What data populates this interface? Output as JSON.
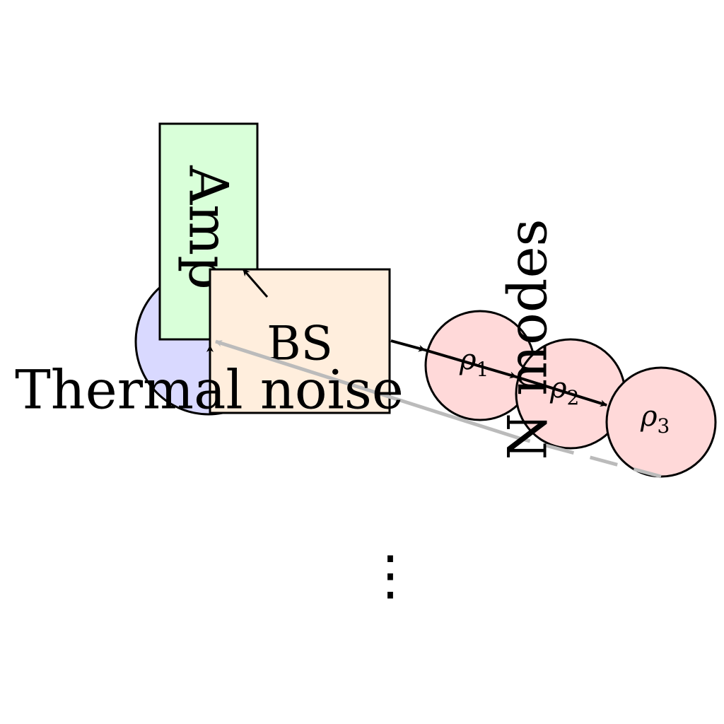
{
  "diagram": {
    "nodes": {
      "thermal_noise": {
        "label": "Thermal noise",
        "color": "#d9d9ff"
      },
      "amp": {
        "label": "Amp",
        "color": "#d9ffd9"
      },
      "beam_splitter": {
        "label": "BS",
        "color": "#ffeedd"
      },
      "modes_label": {
        "label": "N modes"
      },
      "modes": [
        {
          "symbol": "ρ",
          "subscript": "1",
          "color": "#ffd9d9"
        },
        {
          "symbol": "ρ",
          "subscript": "2",
          "color": "#ffd9d9"
        },
        {
          "symbol": "ρ",
          "subscript": "3",
          "color": "#ffd9d9"
        }
      ],
      "ellipsis": {
        "label": "⋮"
      }
    },
    "edges": [
      {
        "from": "thermal_noise",
        "to": "beam_splitter",
        "color": "#000000"
      },
      {
        "from": "beam_splitter",
        "to": "amp",
        "color": "#000000"
      },
      {
        "from": "beam_splitter",
        "to": "mode-1",
        "color": "#000000"
      },
      {
        "from": "mode-1",
        "to": "mode-2",
        "color": "#000000"
      },
      {
        "from": "mode-2",
        "to": "mode-3",
        "color": "#000000"
      },
      {
        "from": "mode-3",
        "to": "beam_splitter",
        "color": "#bbbbbb",
        "style": "dashed-feedback"
      }
    ]
  }
}
